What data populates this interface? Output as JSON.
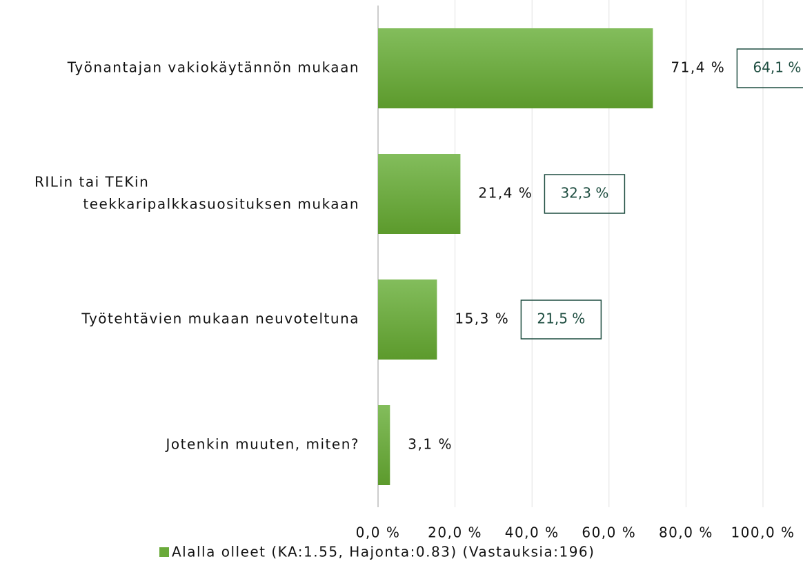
{
  "chart_data": {
    "type": "bar",
    "orientation": "horizontal",
    "categories": [
      "Työnantajan vakiokäytännön mukaan",
      [
        "RILin tai TEKin",
        "teekkaripalkkasuosituksen mukaan"
      ],
      "Työtehtävien mukaan neuvoteltuna",
      "Jotenkin muuten, miten?"
    ],
    "series": [
      {
        "name": "Alalla olleet (KA:1.55, Hajonta:0.83) (Vastauksia:196)",
        "color": "#6aaa3a",
        "values": [
          71.4,
          21.4,
          15.3,
          3.1
        ],
        "value_labels": [
          "71,4 %",
          "21,4 %",
          "15,3 %",
          "3,1 %"
        ]
      }
    ],
    "annotations": [
      "64,1 %",
      "32,3 %",
      "21,5 %"
    ],
    "xlim": [
      0,
      100
    ],
    "xticks": [
      {
        "value": 0,
        "label": "0,0 %"
      },
      {
        "value": 20,
        "label": "20,0 %"
      },
      {
        "value": 40,
        "label": "40,0 %"
      },
      {
        "value": 60,
        "label": "60,0 %"
      },
      {
        "value": 80,
        "label": "80,0 %"
      },
      {
        "value": 100,
        "label": "100,0 %"
      }
    ],
    "grid": true,
    "legend": "bottom"
  }
}
